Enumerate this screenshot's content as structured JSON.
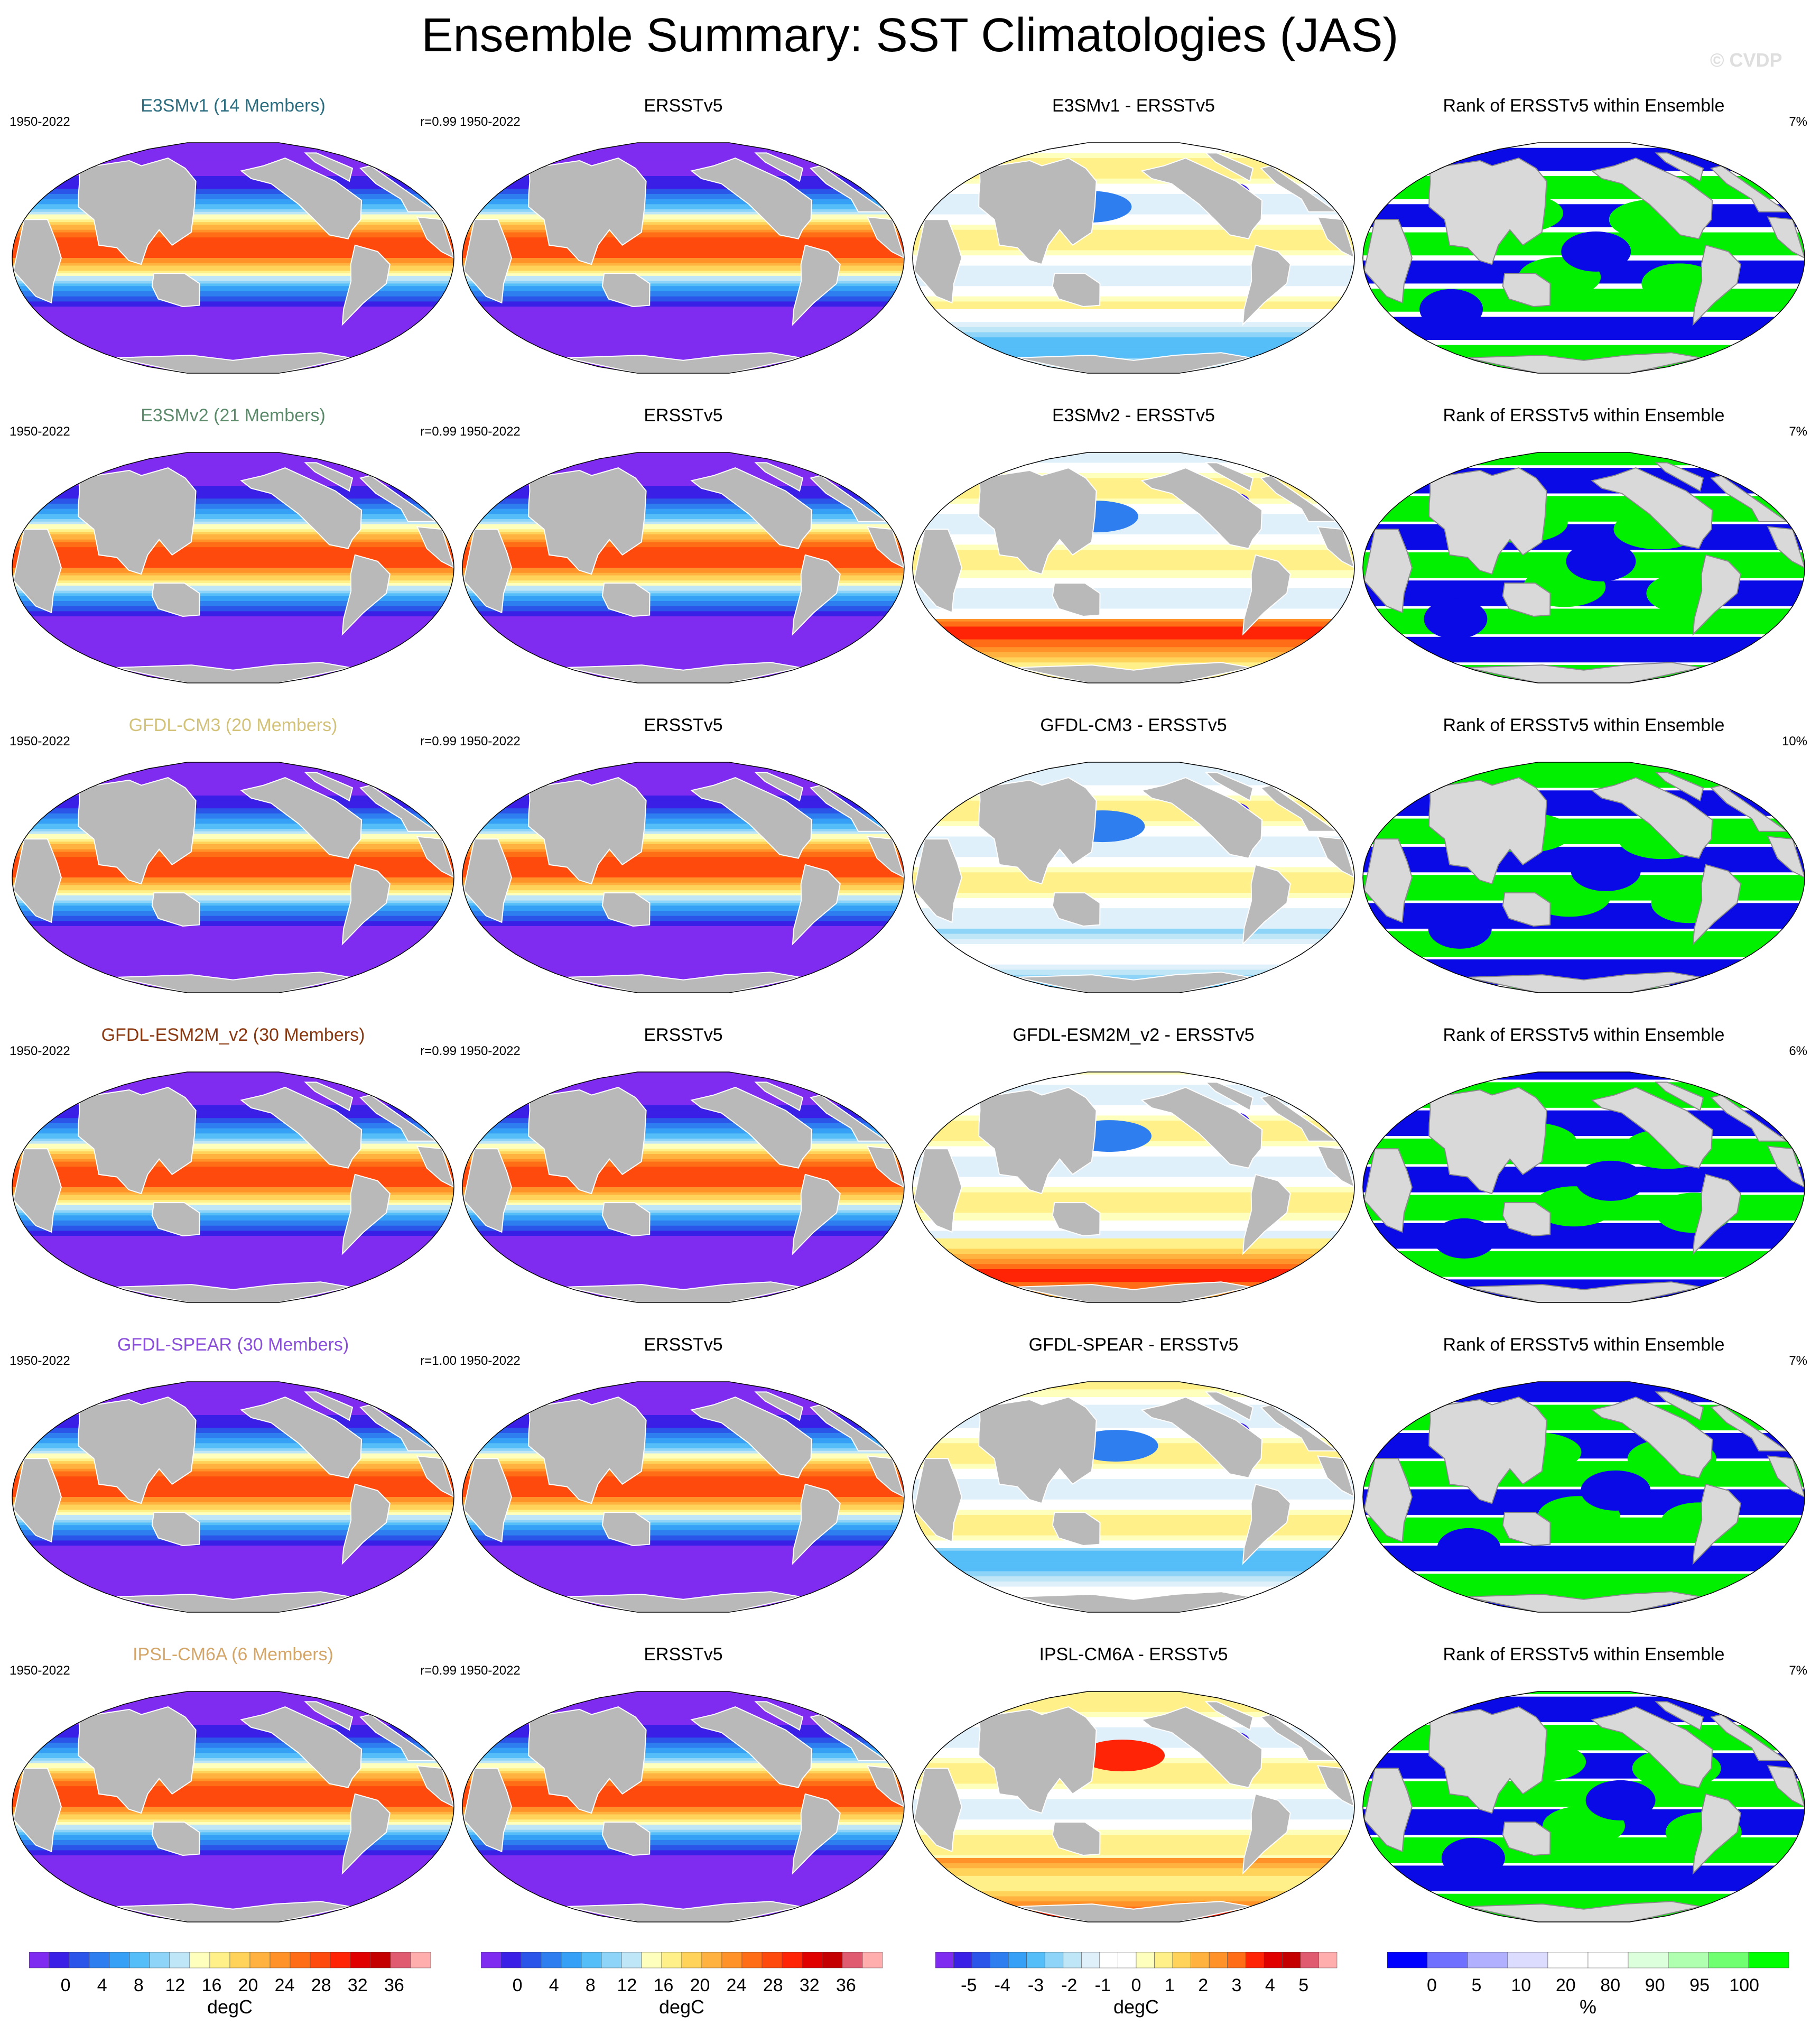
{
  "page": {
    "title": "Ensemble Summary: SST Climatologies (JAS)",
    "watermark": "© CVDP"
  },
  "chart_data": {
    "type": "heatmap",
    "projection": "Robinson (global map panels)",
    "rows": [
      {
        "model_title": "E3SMv1 (14 Members)",
        "model_color": "#2c6d80",
        "period": "1950-2022",
        "pattern_corr": "r=0.99",
        "obs_title": "ERSSTv5",
        "obs_period": "1950-2022",
        "diff_title": "E3SMv1 - ERSSTv5",
        "rank_title": "Rank of ERSSTv5 within Ensemble",
        "rank_pct": "7%"
      },
      {
        "model_title": "E3SMv2 (21 Members)",
        "model_color": "#5b8b6b",
        "period": "1950-2022",
        "pattern_corr": "r=0.99",
        "obs_title": "ERSSTv5",
        "obs_period": "1950-2022",
        "diff_title": "E3SMv2 - ERSSTv5",
        "rank_title": "Rank of ERSSTv5 within Ensemble",
        "rank_pct": "7%"
      },
      {
        "model_title": "GFDL-CM3 (20 Members)",
        "model_color": "#d3c27a",
        "period": "1950-2022",
        "pattern_corr": "r=0.99",
        "obs_title": "ERSSTv5",
        "obs_period": "1950-2022",
        "diff_title": "GFDL-CM3 - ERSSTv5",
        "rank_title": "Rank of ERSSTv5 within Ensemble",
        "rank_pct": "10%"
      },
      {
        "model_title": "GFDL-ESM2M_v2 (30 Members)",
        "model_color": "#8a3a12",
        "period": "1950-2022",
        "pattern_corr": "r=0.99",
        "obs_title": "ERSSTv5",
        "obs_period": "1950-2022",
        "diff_title": "GFDL-ESM2M_v2 - ERSSTv5",
        "rank_title": "Rank of ERSSTv5 within Ensemble",
        "rank_pct": "6%"
      },
      {
        "model_title": "GFDL-SPEAR (30 Members)",
        "model_color": "#8a4fd8",
        "period": "1950-2022",
        "pattern_corr": "r=1.00",
        "obs_title": "ERSSTv5",
        "obs_period": "1950-2022",
        "diff_title": "GFDL-SPEAR - ERSSTv5",
        "rank_title": "Rank of ERSSTv5 within Ensemble",
        "rank_pct": "7%"
      },
      {
        "model_title": "IPSL-CM6A (6 Members)",
        "model_color": "#d4a66a",
        "period": "1950-2022",
        "pattern_corr": "r=0.99",
        "obs_title": "ERSSTv5",
        "obs_period": "1950-2022",
        "diff_title": "IPSL-CM6A - ERSSTv5",
        "rank_title": "Rank of ERSSTv5 within Ensemble",
        "rank_pct": "7%"
      }
    ],
    "colorbars": [
      {
        "label": "degC",
        "ticks": [
          "0",
          "4",
          "8",
          "12",
          "16",
          "20",
          "24",
          "28",
          "32",
          "36"
        ],
        "colors": [
          "#7f2cf0",
          "#3a1fe6",
          "#2a55e8",
          "#2f7ef0",
          "#35a0f5",
          "#55bdf7",
          "#8ed4f8",
          "#bfe6f6",
          "#ffffbd",
          "#fff08a",
          "#ffd25a",
          "#ffb23f",
          "#ff9228",
          "#ff6e17",
          "#ff4a0d",
          "#ff2406",
          "#e00000",
          "#c40000",
          "#e05a70",
          "#ffadad"
        ]
      },
      {
        "label": "degC",
        "ticks": [
          "0",
          "4",
          "8",
          "12",
          "16",
          "20",
          "24",
          "28",
          "32",
          "36"
        ],
        "colors": [
          "#7f2cf0",
          "#3a1fe6",
          "#2a55e8",
          "#2f7ef0",
          "#35a0f5",
          "#55bdf7",
          "#8ed4f8",
          "#bfe6f6",
          "#ffffbd",
          "#fff08a",
          "#ffd25a",
          "#ffb23f",
          "#ff9228",
          "#ff6e17",
          "#ff4a0d",
          "#ff2406",
          "#e00000",
          "#c40000",
          "#e05a70",
          "#ffadad"
        ]
      },
      {
        "label": "degC",
        "ticks": [
          "-5",
          "-4",
          "-3",
          "-2",
          "-1",
          "0",
          "1",
          "2",
          "3",
          "4",
          "5"
        ],
        "colors": [
          "#7f2cf0",
          "#3a1fe6",
          "#2a55e8",
          "#2f7ef0",
          "#35a0f5",
          "#55bdf7",
          "#8ed4f8",
          "#bfe6f6",
          "#dff0fa",
          "#ffffff",
          "#ffffff",
          "#ffffbd",
          "#fff08a",
          "#ffd25a",
          "#ffb23f",
          "#ff9228",
          "#ff6e17",
          "#ff2406",
          "#e00000",
          "#c40000",
          "#e05a70",
          "#ffadad"
        ]
      },
      {
        "label": "%",
        "ticks": [
          "0",
          "5",
          "10",
          "20",
          "80",
          "90",
          "95",
          "100"
        ],
        "colors": [
          "#0000ff",
          "#7070ff",
          "#b0b0ff",
          "#dcdcff",
          "#ffffff",
          "#ffffff",
          "#dcffdc",
          "#b0ffb0",
          "#70ff70",
          "#00ff00"
        ]
      }
    ],
    "rank_class_colors": {
      "low": "#0a0ae6",
      "mid": "#ffffff",
      "high": "#00f000"
    }
  }
}
